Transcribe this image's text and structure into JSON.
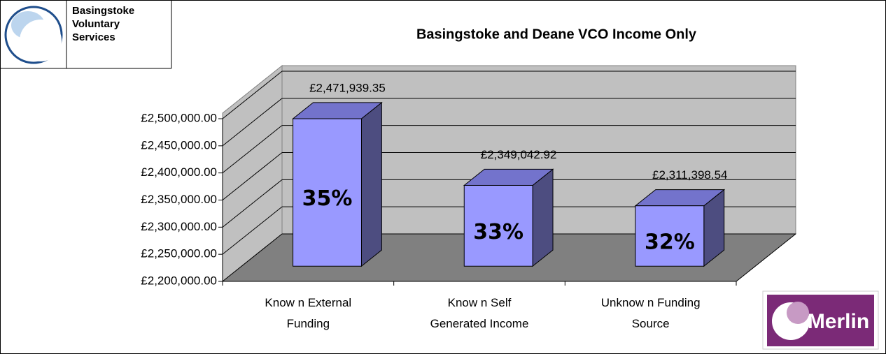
{
  "logo_text": [
    "Basingstoke",
    "Voluntary",
    "Services"
  ],
  "merlin_text": "Merlin",
  "chart_data": {
    "type": "bar3d",
    "title": "Basingstoke and Deane VCO Income Only",
    "categories": [
      "Know n External Funding",
      "Know n Self Generated Income",
      "Unknow n Funding Source"
    ],
    "values": [
      2471939.35,
      2349042.92,
      2311398.54
    ],
    "value_labels": [
      "£2,471,939.35",
      "£2,349,042.92",
      "£2,311,398.54"
    ],
    "bar_labels": [
      "35%",
      "33%",
      "32%"
    ],
    "color": "#9999ff",
    "ylim": [
      2200000,
      2500000
    ],
    "yticks": [
      {
        "value": 2200000,
        "label": "£2,200,000.00"
      },
      {
        "value": 2250000,
        "label": "£2,250,000.00"
      },
      {
        "value": 2300000,
        "label": "£2,300,000.00"
      },
      {
        "value": 2350000,
        "label": "£2,350,000.00"
      },
      {
        "value": 2400000,
        "label": "£2,400,000.00"
      },
      {
        "value": 2450000,
        "label": "£2,450,000.00"
      },
      {
        "value": 2500000,
        "label": "£2,500,000.00"
      }
    ],
    "grid": true
  }
}
